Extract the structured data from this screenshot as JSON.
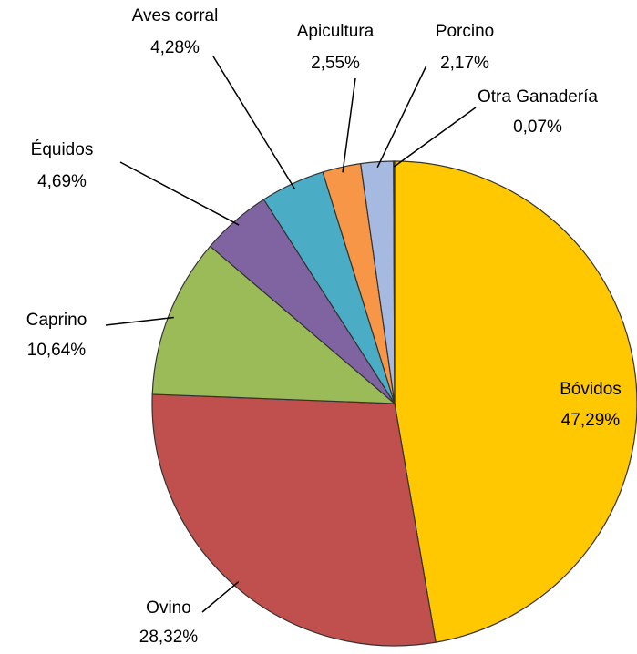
{
  "chart_data": {
    "type": "pie",
    "categories": [
      "Bóvidos",
      "Ovino",
      "Caprino",
      "Équidos",
      "Aves corral",
      "Apicultura",
      "Porcino",
      "Otra Ganadería"
    ],
    "values": [
      47.29,
      28.32,
      10.64,
      4.69,
      4.28,
      2.55,
      2.17,
      0.07
    ],
    "value_labels": [
      "47,29%",
      "28,32%",
      "10,64%",
      "4,69%",
      "4,28%",
      "2,55%",
      "2,17%",
      "0,07%"
    ],
    "colors": [
      "#ffc800",
      "#c0504d",
      "#9bbb59",
      "#8064a2",
      "#4bacc6",
      "#f79646",
      "#a6b9e0",
      "#77933c"
    ]
  }
}
